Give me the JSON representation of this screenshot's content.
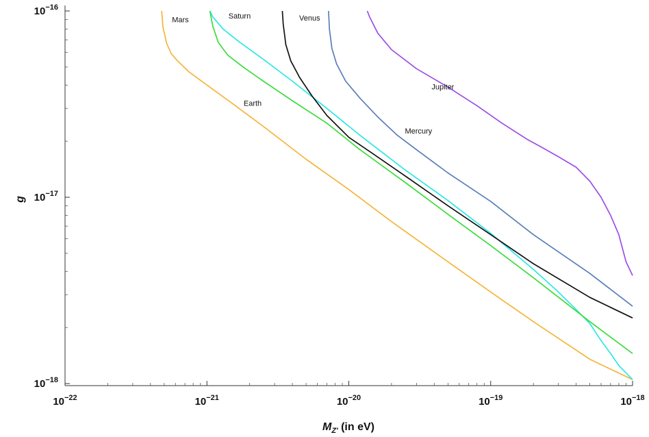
{
  "chart_data": {
    "type": "line",
    "title": "",
    "xlabel": {
      "main": "M",
      "sub": "Z'",
      "unit": " (in eV)"
    },
    "ylabel": "g",
    "xscale": "log",
    "yscale": "log",
    "xlim": [
      1e-22,
      1e-18
    ],
    "ylim": [
      1e-18,
      1e-16
    ],
    "xticks": [
      {
        "value": 1e-22,
        "base": "10",
        "exp": "−22"
      },
      {
        "value": 1e-21,
        "base": "10",
        "exp": "−21"
      },
      {
        "value": 1e-20,
        "base": "10",
        "exp": "−20"
      },
      {
        "value": 1e-19,
        "base": "10",
        "exp": "−19"
      },
      {
        "value": 1e-18,
        "base": "10",
        "exp": "−18"
      }
    ],
    "yticks": [
      {
        "value": 1e-18,
        "base": "10",
        "exp": "−18"
      },
      {
        "value": 1e-17,
        "base": "10",
        "exp": "−17"
      },
      {
        "value": 1e-16,
        "base": "10",
        "exp": "−16"
      }
    ],
    "grid": false,
    "legend": "none",
    "series": [
      {
        "name": "Mars",
        "color": "#f5b43a",
        "x": [
          4.8e-22,
          4.9e-22,
          5.2e-22,
          5.6e-22,
          6.2e-22,
          7.5e-22,
          1e-21,
          1.5e-21,
          2.5e-21,
          5e-21,
          1e-20,
          2e-20,
          5e-20,
          1e-19,
          2e-19,
          5e-19,
          1e-18
        ],
        "y": [
          1e-16,
          8.2e-17,
          6.7e-17,
          5.9e-17,
          5.4e-17,
          4.7e-17,
          4e-17,
          3.2e-17,
          2.4e-17,
          1.6e-17,
          1.1e-17,
          7.4e-18,
          4.5e-18,
          3.1e-18,
          2.15e-18,
          1.35e-18,
          1.05e-18
        ]
      },
      {
        "name": "Saturn",
        "color": "#2ee6e6",
        "x": [
          1.05e-21,
          1.1e-21,
          1.3e-21,
          1.7e-21,
          2.5e-21,
          4e-21,
          7e-21,
          1.2e-20,
          2.5e-20,
          5e-20,
          1e-19,
          2e-19,
          3e-19,
          4e-19,
          5e-19,
          6e-19,
          7e-19,
          8e-19,
          1e-18
        ],
        "y": [
          1e-16,
          9.3e-17,
          8e-17,
          6.8e-17,
          5.5e-17,
          4.2e-17,
          3e-17,
          2.15e-17,
          1.4e-17,
          9.6e-18,
          6.4e-18,
          4.1e-18,
          3.1e-18,
          2.5e-18,
          2.1e-18,
          1.7e-18,
          1.45e-18,
          1.25e-18,
          1.05e-18
        ]
      },
      {
        "name": "Earth",
        "color": "#3cdc3c",
        "x": [
          1.05e-21,
          1.1e-21,
          1.2e-21,
          1.4e-21,
          1.8e-21,
          2.5e-21,
          4e-21,
          7e-21,
          1.2e-20,
          2.5e-20,
          5e-20,
          1e-19,
          2e-19,
          5e-19,
          1e-18
        ],
        "y": [
          1e-16,
          8.3e-17,
          6.8e-17,
          5.8e-17,
          5e-17,
          4.2e-17,
          3.3e-17,
          2.5e-17,
          1.8e-17,
          1.2e-17,
          8.1e-18,
          5.5e-18,
          3.7e-18,
          2.15e-18,
          1.45e-18
        ]
      },
      {
        "name": "Venus",
        "color": "#111111",
        "x": [
          3.4e-21,
          3.45e-21,
          3.6e-21,
          3.9e-21,
          4.5e-21,
          5.5e-21,
          7e-21,
          1e-20,
          1.5e-20,
          2.5e-20,
          5e-20,
          1e-19,
          2e-19,
          5e-19,
          1e-18
        ],
        "y": [
          1e-16,
          8.5e-17,
          6.6e-17,
          5.4e-17,
          4.4e-17,
          3.5e-17,
          2.75e-17,
          2.1e-17,
          1.7e-17,
          1.3e-17,
          9e-18,
          6.3e-18,
          4.4e-18,
          2.9e-18,
          2.25e-18
        ]
      },
      {
        "name": "Mercury",
        "color": "#5a7eb8",
        "x": [
          7.2e-21,
          7.3e-21,
          7.6e-21,
          8.2e-21,
          9.5e-21,
          1.2e-20,
          1.6e-20,
          2.2e-20,
          3e-20,
          5e-20,
          1e-19,
          2e-19,
          5e-19,
          1e-18
        ],
        "y": [
          1e-16,
          8e-17,
          6.3e-17,
          5.2e-17,
          4.2e-17,
          3.4e-17,
          2.7e-17,
          2.15e-17,
          1.8e-17,
          1.35e-17,
          9.5e-18,
          6.3e-18,
          3.9e-18,
          2.6e-18
        ]
      },
      {
        "name": "Jupiter",
        "color": "#9b4de6",
        "x": [
          1.35e-20,
          1.4e-20,
          1.6e-20,
          2e-20,
          3e-20,
          5e-20,
          8e-20,
          1.2e-19,
          1.8e-19,
          2.3e-19,
          3e-19,
          4e-19,
          5e-19,
          6e-19,
          7e-19,
          8e-19,
          9e-19,
          1e-18
        ],
        "y": [
          1e-16,
          9.3e-17,
          7.6e-17,
          6.2e-17,
          4.9e-17,
          3.9e-17,
          3.1e-17,
          2.5e-17,
          2.05e-17,
          1.85e-17,
          1.65e-17,
          1.45e-17,
          1.22e-17,
          1e-17,
          8e-18,
          6.3e-18,
          4.5e-18,
          3.8e-18
        ]
      }
    ],
    "annotations": [
      {
        "text": "Mars",
        "x": 6.5e-22,
        "y": 8.7e-17
      },
      {
        "text": "Saturn",
        "x": 1.7e-21,
        "y": 9.1e-17
      },
      {
        "text": "Venus",
        "x": 5.3e-21,
        "y": 8.9e-17
      },
      {
        "text": "Earth",
        "x": 2.1e-21,
        "y": 3.1e-17
      },
      {
        "text": "Jupiter",
        "x": 4.6e-20,
        "y": 3.8e-17
      },
      {
        "text": "Mercury",
        "x": 3.1e-20,
        "y": 2.2e-17
      }
    ]
  }
}
